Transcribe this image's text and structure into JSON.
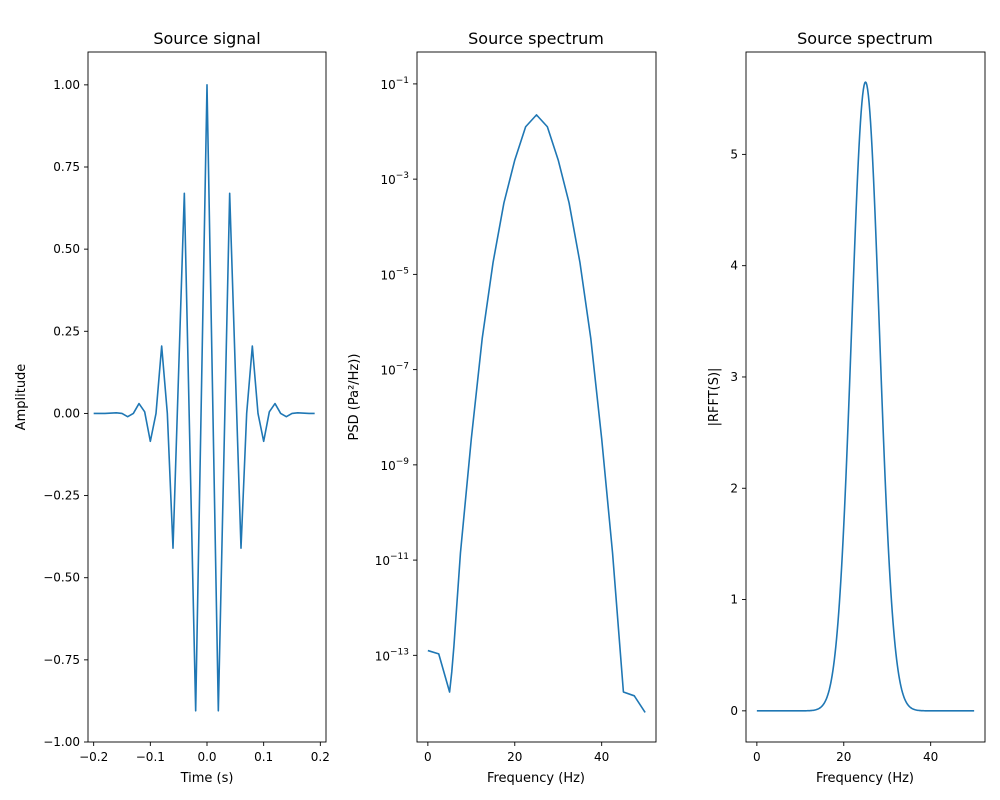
{
  "colors": {
    "line": "#1f77b4",
    "axis": "#000000",
    "background": "#ffffff"
  },
  "chart_data": [
    {
      "type": "line",
      "title": "Source signal",
      "xlabel": "Time (s)",
      "ylabel": "Amplitude",
      "xlim": [
        -0.21,
        0.21
      ],
      "ylim": [
        -1.0,
        1.1
      ],
      "xscale": "linear",
      "yscale": "linear",
      "grid": false,
      "xticks": [
        -0.2,
        -0.1,
        0.0,
        0.1,
        0.2
      ],
      "xtick_labels": [
        "−0.2",
        "−0.1",
        "0.0",
        "0.1",
        "0.2"
      ],
      "yticks": [
        -1.0,
        -0.75,
        -0.5,
        -0.25,
        0.0,
        0.25,
        0.5,
        0.75,
        1.0
      ],
      "ytick_labels": [
        "−1.00",
        "−0.75",
        "−0.50",
        "−0.25",
        "0.00",
        "0.25",
        "0.50",
        "0.75",
        "1.00"
      ],
      "series": [
        {
          "x": [
            -0.2,
            -0.18,
            -0.16,
            -0.15,
            -0.14,
            -0.13,
            -0.12,
            -0.11,
            -0.1,
            -0.09,
            -0.08,
            -0.07,
            -0.06,
            -0.04,
            -0.02,
            0.0,
            0.02,
            0.04,
            0.06,
            0.07,
            0.08,
            0.09,
            0.1,
            0.11,
            0.12,
            0.13,
            0.14,
            0.15,
            0.16,
            0.18,
            0.19
          ],
          "y": [
            0.0,
            0.0,
            0.002,
            0.0,
            -0.01,
            0.0,
            0.03,
            0.005,
            -0.085,
            0.0,
            0.205,
            0.0,
            -0.41,
            0.67,
            -0.905,
            1.0,
            -0.905,
            0.67,
            -0.41,
            0.0,
            0.205,
            0.0,
            -0.085,
            0.005,
            0.03,
            0.0,
            -0.01,
            0.0,
            0.002,
            0.0,
            0.0
          ]
        }
      ]
    },
    {
      "type": "line",
      "title": "Source spectrum",
      "xlabel": "Frequency (Hz)",
      "ylabel": "PSD (Pa²/Hz))",
      "xlim": [
        -2.5,
        52.5
      ],
      "ylim": [
        -14.82,
        -0.33
      ],
      "xscale": "linear",
      "yscale": "log",
      "grid": false,
      "xticks": [
        0,
        20,
        40
      ],
      "xtick_labels": [
        "0",
        "20",
        "40"
      ],
      "yticks": [
        -13,
        -11,
        -9,
        -7,
        -5,
        -3,
        -1
      ],
      "ytick_labels": [
        "10",
        "10",
        "10",
        "10",
        "10",
        "10",
        "10"
      ],
      "ytick_exponents": [
        "−13",
        "−11",
        "−9",
        "−7",
        "−5",
        "−3",
        "−1"
      ],
      "series": [
        {
          "x": [
            0,
            2.5,
            5,
            5.5,
            6,
            7.5,
            10,
            12.5,
            15,
            17.5,
            20,
            22.5,
            25,
            27.5,
            30,
            32.5,
            35,
            37.5,
            40,
            42.5,
            45,
            47.5,
            50
          ],
          "y": [
            -12.9,
            -12.97,
            -13.77,
            -13.35,
            -12.8,
            -10.85,
            -8.45,
            -6.35,
            -4.75,
            -3.5,
            -2.6,
            -1.9,
            -1.65,
            -1.9,
            -2.6,
            -3.5,
            -4.75,
            -6.35,
            -8.45,
            -10.85,
            -13.77,
            -13.85,
            -14.2
          ]
        }
      ]
    },
    {
      "type": "line",
      "title": "Source spectrum",
      "xlabel": "Frequency (Hz)",
      "ylabel": "|RFFT(S)|",
      "xlim": [
        -2.5,
        52.5
      ],
      "ylim": [
        -0.28,
        5.92
      ],
      "xscale": "linear",
      "yscale": "linear",
      "grid": false,
      "xticks": [
        0,
        20,
        40
      ],
      "xtick_labels": [
        "0",
        "20",
        "40"
      ],
      "yticks": [
        0,
        1,
        2,
        3,
        4,
        5
      ],
      "ytick_labels": [
        "0",
        "1",
        "2",
        "3",
        "4",
        "5"
      ],
      "series": [
        {
          "peak_x": 25,
          "peak_y": 5.65,
          "sigma": 3.2,
          "x_range": [
            0,
            50
          ]
        }
      ]
    }
  ]
}
